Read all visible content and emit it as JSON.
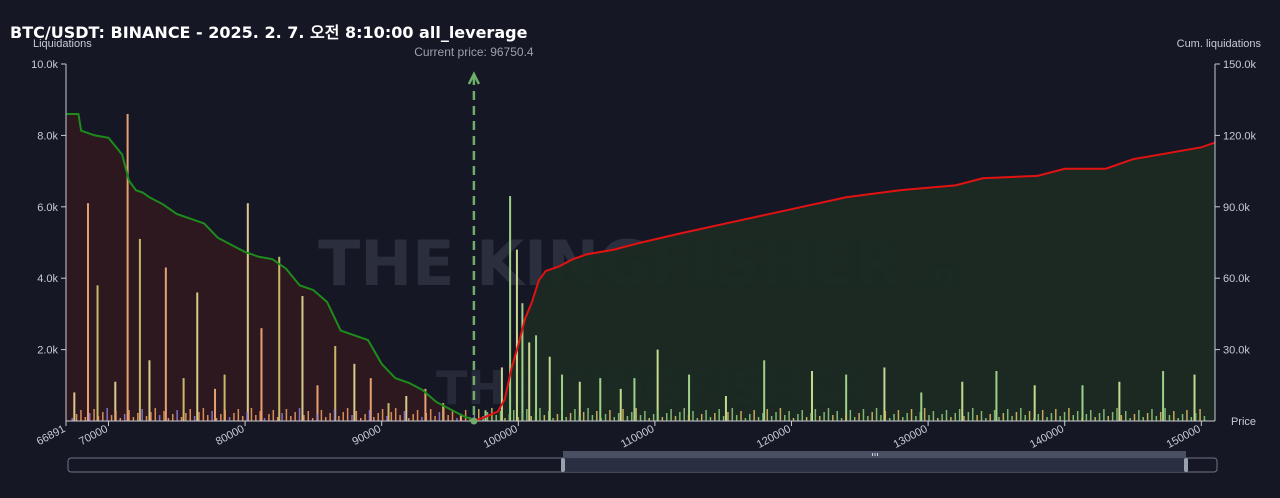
{
  "title": "BTC/USDT: BINANCE - 2025. 2. 7. 오전 8:10:00 all_leverage",
  "watermark": "THE KINGFISHER",
  "watermark_suffix": ".io",
  "current_price_label": "Current price: 96750.4",
  "colors": {
    "background": "#151724",
    "short_cum_line": "#e31212",
    "long_cum_line": "#1d8c1d",
    "short_fill": "#1b2a23",
    "long_fill": "#2e1820",
    "current_price": "#6fae6a"
  },
  "chart_data": {
    "type": "bar",
    "title": "BTC/USDT: BINANCE - 2025. 2. 7. 오전 8:10:00 all_leverage",
    "xlabel": "Price",
    "ylabel": "Liquidations",
    "y2label": "Cum. liquidations",
    "xlim": [
      66891,
      151000
    ],
    "ylim": [
      0,
      10000
    ],
    "y2lim": [
      0,
      150000
    ],
    "x_ticks": [
      "66891",
      "70000",
      "80000",
      "90000",
      "100000",
      "110000",
      "120000",
      "130000",
      "140000",
      "150000"
    ],
    "y_ticks": [
      "2.0k",
      "4.0k",
      "6.0k",
      "8.0k",
      "10.0k"
    ],
    "y2_ticks": [
      "30.0k",
      "60.0k",
      "90.0k",
      "120.0k",
      "150.0k"
    ],
    "current_price": 96750.4,
    "cum_long": {
      "x": [
        66891,
        67800,
        68000,
        69000,
        70000,
        71000,
        71500,
        72000,
        72500,
        73000,
        74000,
        75000,
        76000,
        77000,
        78000,
        79000,
        80000,
        81000,
        82000,
        83000,
        84000,
        85000,
        86000,
        87000,
        88000,
        89000,
        90000,
        91000,
        92000,
        93000,
        94000,
        95000,
        96000,
        96750
      ],
      "y": [
        129000,
        129000,
        122000,
        120000,
        119000,
        112000,
        101000,
        97000,
        96000,
        94000,
        91000,
        87000,
        85000,
        83000,
        77000,
        74000,
        71000,
        69000,
        68000,
        64000,
        57000,
        55000,
        50000,
        38000,
        36000,
        34000,
        24000,
        18000,
        16000,
        13000,
        8000,
        5000,
        2000,
        500
      ]
    },
    "cum_short": {
      "x": [
        96750,
        97500,
        98500,
        99000,
        99500,
        100000,
        100500,
        101000,
        101500,
        102000,
        103000,
        104000,
        105000,
        107000,
        109000,
        112000,
        116000,
        120000,
        124000,
        128000,
        132000,
        134000,
        138000,
        140000,
        143000,
        145000,
        148000,
        150000,
        151000
      ],
      "y": [
        0,
        1500,
        4000,
        9000,
        22000,
        32000,
        43000,
        50000,
        59000,
        63000,
        65000,
        68000,
        70000,
        72000,
        75000,
        79000,
        84000,
        89000,
        94000,
        97000,
        99000,
        102000,
        103000,
        106000,
        106000,
        110000,
        113000,
        115000,
        117000
      ]
    },
    "bars_long": {
      "x": [
        67500,
        68500,
        69200,
        70500,
        71400,
        72300,
        73000,
        74200,
        75500,
        76500,
        77800,
        78500,
        80200,
        81200,
        82500,
        84200,
        85300,
        86600,
        88000,
        89200,
        90500,
        91800,
        93200,
        94500,
        95800
      ],
      "values": [
        800,
        6100,
        3800,
        1100,
        8600,
        5100,
        1700,
        4300,
        1200,
        3600,
        900,
        1300,
        6100,
        2600,
        4600,
        3500,
        1000,
        2100,
        1600,
        1200,
        500,
        700,
        900,
        500,
        200
      ]
    },
    "bars_short": {
      "x": [
        97600,
        98800,
        99400,
        99900,
        100300,
        100800,
        101300,
        102300,
        103200,
        104500,
        106000,
        107500,
        108500,
        110200,
        112500,
        115200,
        118000,
        121500,
        124000,
        126800,
        129500,
        132500,
        135000,
        137800,
        141300,
        144000,
        147200,
        149500
      ],
      "values": [
        300,
        1500,
        6300,
        4800,
        3300,
        2200,
        2400,
        1800,
        1300,
        1100,
        1200,
        900,
        1200,
        2000,
        1300,
        700,
        1700,
        1400,
        1300,
        1500,
        800,
        1100,
        1400,
        1000,
        1000,
        1100,
        1400,
        1300
      ]
    }
  }
}
